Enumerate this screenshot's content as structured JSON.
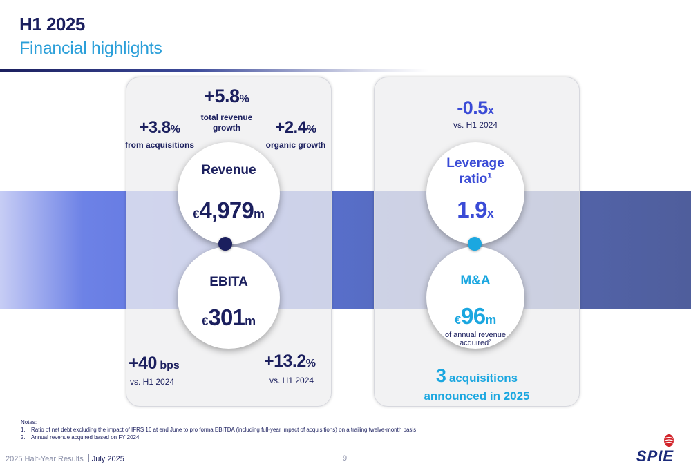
{
  "header": {
    "title": "H1 2025",
    "subtitle": "Financial highlights"
  },
  "revenue": {
    "label": "Revenue",
    "currency": "€",
    "value": "4,979",
    "unit": "m",
    "total_growth": {
      "value": "+5.8",
      "unit": "%",
      "caption_line1": "total revenue",
      "caption_line2": "growth"
    },
    "acquisitions": {
      "value": "+3.8",
      "unit": "%",
      "caption": "from acquisitions"
    },
    "organic": {
      "value": "+2.4",
      "unit": "%",
      "caption": "organic growth"
    }
  },
  "ebita": {
    "label": "EBITA",
    "currency": "€",
    "value": "301",
    "unit": "m",
    "margin": {
      "value": "+40",
      "unit": "bps",
      "caption": "vs. H1 2024"
    },
    "growth": {
      "value": "+13.2",
      "unit": "%",
      "caption": "vs. H1 2024"
    }
  },
  "leverage": {
    "label_line1": "Leverage",
    "label_line2": "ratio",
    "footnote": "1",
    "value": "1.9",
    "unit": "x",
    "change": {
      "value": "-0.5",
      "unit": "x",
      "caption": "vs. H1 2024"
    }
  },
  "ma": {
    "label": "M&A",
    "currency": "€",
    "value": "96",
    "unit": "m",
    "caption_line1": "of annual revenue",
    "caption_line2": "acquired",
    "footnote": "2",
    "acquisitions_count": "3",
    "acquisitions_text": "acquisitions",
    "acquisitions_line2": "announced in 2025"
  },
  "notes": {
    "heading": "Notes:",
    "items": [
      {
        "num": "1.",
        "text": "Ratio of net debt excluding the impact of IFRS 16 at end June to pro forma EBITDA (including full-year impact of acquisitions) on a trailing twelve-month basis"
      },
      {
        "num": "2.",
        "text": "Annual revenue acquired based on FY 2024"
      }
    ]
  },
  "footer": {
    "event": "2025 Half-Year Results",
    "date": "July 2025",
    "page": "9",
    "logo": "SPIE"
  },
  "colors": {
    "navy": "#1b1f5e",
    "blue": "#3a4bd6",
    "cyan": "#1ba7e0",
    "band": "#5a6fdc"
  }
}
